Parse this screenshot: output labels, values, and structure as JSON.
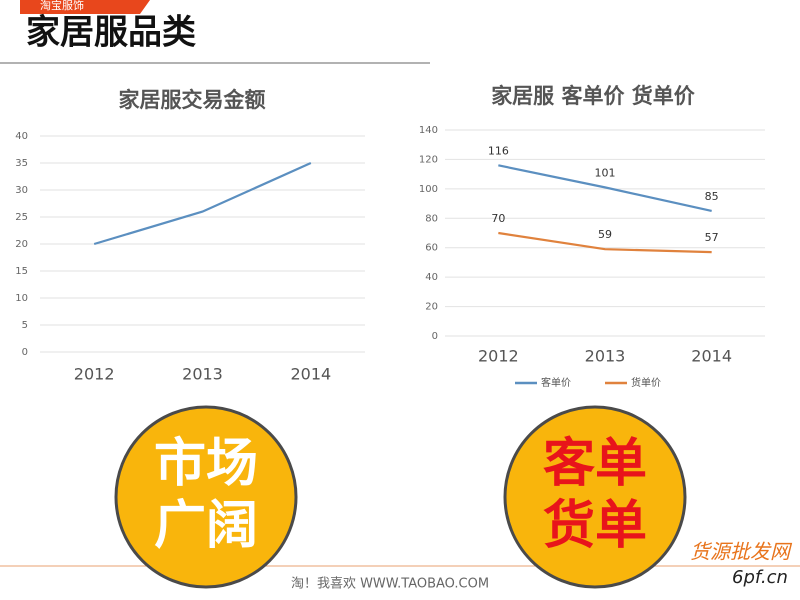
{
  "header": {
    "tag": "淘宝服饰",
    "title": "家居服品类"
  },
  "chart_data": [
    {
      "type": "line",
      "title": "家居服交易金额",
      "categories": [
        "2012",
        "2013",
        "2014"
      ],
      "series": [
        {
          "name": null,
          "color": "#5b8fc0",
          "values": [
            20,
            26,
            35
          ]
        }
      ],
      "ylim": [
        0,
        40
      ],
      "yticks": [
        0,
        5,
        10,
        15,
        20,
        25,
        30,
        35,
        40
      ],
      "grid": true,
      "data_labels": false
    },
    {
      "type": "line",
      "title": "家居服  客单价 货单价",
      "categories": [
        "2012",
        "2013",
        "2014"
      ],
      "series": [
        {
          "name": "客单价",
          "color": "#5b8fc0",
          "values": [
            116,
            101,
            85
          ]
        },
        {
          "name": "货单价",
          "color": "#e0823d",
          "values": [
            70,
            59,
            57
          ]
        }
      ],
      "ylim": [
        0,
        140
      ],
      "yticks": [
        0,
        20,
        40,
        60,
        80,
        100,
        120,
        140
      ],
      "grid": true,
      "data_labels": true,
      "legend": "bottom"
    }
  ],
  "badges": [
    {
      "lines": [
        "市场",
        "广阔"
      ],
      "color": "#ffffff"
    },
    {
      "lines": [
        "客单",
        "货单"
      ],
      "color": "#e8141b"
    }
  ],
  "footer": "淘！我喜欢    WWW.TAOBAO.COM",
  "watermark": {
    "name": "货源批发网",
    "site": "6pf.cn"
  }
}
